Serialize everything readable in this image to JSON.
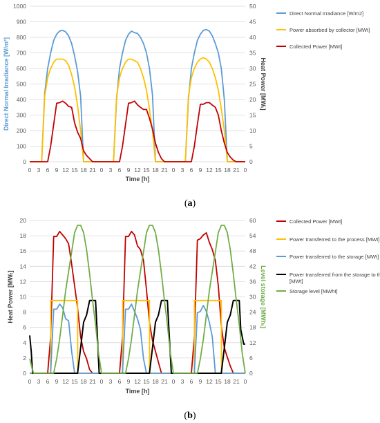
{
  "colors": {
    "blue": "#5B9BD5",
    "yellow": "#FFC000",
    "red": "#C00000",
    "black": "#000000",
    "green": "#70AD47",
    "grid": "#D9D9D9",
    "tick": "#595959"
  },
  "chart_data": [
    {
      "type": "line",
      "caption_text": "a",
      "xlabel": "Time [h]",
      "x_ticks": [
        "0",
        "3",
        "6",
        "9",
        "12",
        "15",
        "18",
        "21",
        "0",
        "3",
        "6",
        "9",
        "12",
        "15",
        "18",
        "21",
        "0",
        "3",
        "6",
        "9",
        "12",
        "15",
        "18",
        "21",
        "0"
      ],
      "ylabel_left": "Direct Normal Irradiance [W/m²]",
      "ylabel_right": "Heat Power [MWₜ]",
      "ylim_left": [
        0,
        1000
      ],
      "ylim_right": [
        0,
        50
      ],
      "yticks_left": [
        "0",
        "100",
        "200",
        "300",
        "400",
        "500",
        "600",
        "700",
        "800",
        "900",
        "1000"
      ],
      "yticks_right": [
        "0",
        "5",
        "10",
        "15",
        "20",
        "25",
        "30",
        "35",
        "40",
        "45",
        "50"
      ],
      "grid": "horizontal",
      "legend_position": "right",
      "series": [
        {
          "name": "Direct Normal Irradiance [W/m2]",
          "axis": "left",
          "color_key": "blue",
          "x": [
            0,
            4,
            5,
            6,
            7,
            8,
            9,
            10,
            11,
            12,
            13,
            14,
            15,
            16,
            17,
            18,
            19,
            24,
            28,
            29,
            30,
            31,
            32,
            33,
            34,
            35,
            36,
            37,
            38,
            39,
            40,
            41,
            42,
            43,
            48,
            52,
            53,
            54,
            55,
            56,
            57,
            58,
            59,
            60,
            61,
            62,
            63,
            64,
            65,
            66,
            67,
            72
          ],
          "y": [
            0,
            0,
            440,
            600,
            700,
            780,
            820,
            840,
            845,
            835,
            810,
            760,
            680,
            580,
            420,
            0,
            0,
            0,
            0,
            400,
            600,
            700,
            780,
            820,
            840,
            830,
            825,
            800,
            760,
            700,
            600,
            430,
            0,
            0,
            0,
            0,
            400,
            600,
            700,
            780,
            820,
            845,
            850,
            840,
            810,
            760,
            700,
            600,
            400,
            0,
            0,
            0
          ]
        },
        {
          "name": "Power absorbed by collector [MWt]",
          "axis": "right",
          "color_key": "yellow",
          "x": [
            0,
            4,
            5,
            6,
            7,
            8,
            9,
            10,
            11,
            12,
            13,
            14,
            15,
            16,
            17,
            18,
            19,
            24,
            28,
            29,
            30,
            31,
            32,
            33,
            34,
            35,
            36,
            37,
            38,
            39,
            40,
            41,
            42,
            43,
            48,
            52,
            53,
            54,
            55,
            56,
            57,
            58,
            59,
            60,
            61,
            62,
            63,
            64,
            65,
            66,
            67,
            72
          ],
          "y": [
            0,
            0,
            21,
            27,
            30,
            32,
            33,
            33,
            33,
            32.5,
            31,
            28,
            24,
            18,
            10,
            0,
            0,
            0,
            0,
            21,
            27,
            30,
            32,
            33,
            33,
            32.5,
            32,
            30,
            27,
            23,
            17,
            10,
            0,
            0,
            0,
            0,
            21,
            27,
            30,
            32,
            33,
            33.5,
            33,
            32,
            30,
            27,
            23,
            17,
            10,
            0,
            0,
            0
          ]
        },
        {
          "name": "Collected Power [MWt]",
          "axis": "right",
          "color_key": "red",
          "x": [
            0,
            6,
            7,
            8,
            9,
            10,
            11,
            12,
            13,
            14,
            15,
            16,
            17,
            18,
            19,
            20,
            21,
            24,
            30,
            31,
            32,
            33,
            34,
            35,
            36,
            37,
            38,
            39,
            40,
            41,
            42,
            43,
            44,
            45,
            48,
            54,
            55,
            56,
            57,
            58,
            59,
            60,
            61,
            62,
            63,
            64,
            65,
            66,
            67,
            68,
            69,
            72
          ],
          "y": [
            0,
            0,
            5,
            12,
            18.8,
            19,
            19.5,
            18.8,
            17.8,
            17.5,
            12.5,
            9.5,
            7.5,
            3.5,
            2,
            1,
            0,
            0,
            0,
            5,
            12,
            18.8,
            19,
            19.5,
            18.3,
            17.5,
            16.8,
            16.8,
            14,
            10.5,
            6,
            3,
            1,
            0,
            0,
            0,
            5,
            12,
            18.5,
            18.5,
            19,
            19,
            18.2,
            17.5,
            15,
            10,
            6,
            3,
            1.5,
            0.5,
            0,
            0
          ]
        }
      ]
    },
    {
      "type": "line",
      "caption_text": "b",
      "xlabel": "Time [h]",
      "x_ticks": [
        "0",
        "3",
        "6",
        "9",
        "12",
        "15",
        "18",
        "21",
        "0",
        "3",
        "6",
        "9",
        "12",
        "15",
        "18",
        "21",
        "0",
        "3",
        "6",
        "9",
        "12",
        "15",
        "18",
        "21",
        "0"
      ],
      "ylabel_left": "Heat Power [MWₜ]",
      "ylabel_right": "Level storage [MWhₜ]",
      "ylim_left": [
        0,
        21
      ],
      "ylim_right": [
        0,
        63
      ],
      "yticks_left": [
        "0",
        "2",
        "4",
        "6",
        "8",
        "10",
        "12",
        "14",
        "16",
        "18",
        "20"
      ],
      "yticks_right": [
        "0",
        "6",
        "12",
        "18",
        "24",
        "30",
        "36",
        "42",
        "48",
        "54",
        "60"
      ],
      "grid": "horizontal",
      "legend_position": "right",
      "series": [
        {
          "name": "Collected Power [MWt]",
          "axis": "left",
          "color_key": "red",
          "x": [
            0,
            6,
            7,
            8,
            9,
            10,
            11,
            12,
            13,
            14,
            15,
            16,
            17,
            18,
            19,
            20,
            21,
            24,
            30,
            31,
            32,
            33,
            34,
            35,
            36,
            37,
            38,
            39,
            40,
            41,
            42,
            43,
            44,
            45,
            48,
            54,
            55,
            56,
            57,
            58,
            59,
            60,
            61,
            62,
            63,
            64,
            65,
            66,
            67,
            68,
            69,
            72
          ],
          "y": [
            0,
            0,
            5,
            18.8,
            18.8,
            19.5,
            19,
            18.5,
            17.8,
            15,
            12,
            9,
            5,
            3,
            2,
            0.5,
            0,
            0,
            0,
            5,
            18.8,
            18.8,
            19.5,
            19,
            17.5,
            17,
            15.5,
            11.5,
            7,
            4.5,
            3,
            1.5,
            0,
            0,
            0,
            0,
            5,
            18.3,
            18.5,
            19,
            19.3,
            18,
            17,
            15.5,
            12,
            6.5,
            3.5,
            2.2,
            1,
            0,
            0,
            0
          ]
        },
        {
          "name": "Power transferred to the process [MWt]",
          "axis": "left",
          "color_key": "yellow",
          "x": [
            0,
            6,
            7,
            7.05,
            16,
            16.05,
            24,
            30,
            31,
            31.05,
            40,
            40.05,
            48,
            54,
            55,
            55.05,
            64,
            64.05,
            72
          ],
          "y": [
            0,
            0,
            0,
            10,
            10,
            0,
            0,
            0,
            0,
            10,
            10,
            0,
            0,
            0,
            0,
            10,
            10,
            0,
            0
          ]
        },
        {
          "name": "Power transferred to the storage [MWt]",
          "axis": "left",
          "color_key": "blue",
          "x": [
            0,
            6,
            7,
            8,
            9,
            10,
            11,
            12,
            13,
            14,
            15,
            16,
            24,
            30,
            31,
            32,
            33,
            34,
            35,
            36,
            37,
            38,
            39,
            40,
            48,
            54,
            55,
            56,
            57,
            58,
            59,
            60,
            61,
            62,
            63,
            64,
            72
          ],
          "y": [
            0,
            0,
            0,
            8.8,
            8.8,
            9.5,
            9,
            7.5,
            7.2,
            3,
            0,
            0,
            0,
            0,
            0,
            8.8,
            8.8,
            9.5,
            8.5,
            7.5,
            6,
            2,
            0,
            0,
            0,
            0,
            0,
            8.3,
            8.5,
            9.3,
            8.5,
            7,
            5,
            0,
            0,
            0,
            0
          ]
        },
        {
          "name": "Power transferred from the storage to the process [MWt]",
          "axis": "left",
          "color_key": "black",
          "x": [
            0,
            0.5,
            1,
            16,
            17,
            18,
            19,
            20,
            22,
            22.5,
            23.2,
            24,
            40,
            41,
            42,
            43,
            44,
            46,
            46.5,
            47.3,
            48,
            64,
            65,
            66,
            67,
            68,
            70,
            70.5,
            71.5,
            72
          ],
          "y": [
            5.2,
            3,
            0,
            0,
            3.5,
            7,
            8,
            10,
            10,
            6,
            0,
            0,
            0,
            3.5,
            7,
            8,
            10,
            10,
            6,
            0,
            0,
            0,
            3.5,
            7,
            8,
            10,
            10,
            6,
            4,
            4
          ]
        },
        {
          "name": "Storage level [MWht]",
          "axis": "right",
          "color_key": "green",
          "x": [
            0,
            0.8,
            1.3,
            8,
            9,
            10,
            11,
            12,
            13,
            14,
            15,
            16,
            17,
            18,
            19,
            20,
            21,
            22,
            23,
            24,
            32,
            33,
            34,
            35,
            36,
            37,
            38,
            39,
            40,
            41,
            42,
            43,
            44,
            45,
            46,
            47,
            48,
            56,
            57,
            58,
            59,
            60,
            61,
            62,
            63,
            64,
            65,
            66,
            67,
            68,
            69,
            70,
            71,
            72
          ],
          "y": [
            6,
            2,
            0,
            0,
            6,
            14,
            24,
            34,
            42,
            50,
            58,
            61,
            61,
            58,
            51,
            41,
            30,
            20,
            8,
            0,
            0,
            6,
            14,
            24,
            34,
            42,
            50,
            58,
            61,
            61,
            58,
            51,
            41,
            30,
            20,
            8,
            0,
            0,
            6,
            14,
            24,
            34,
            42,
            50,
            58,
            61,
            61,
            58,
            51,
            41,
            30,
            20,
            8,
            0
          ]
        }
      ]
    }
  ]
}
